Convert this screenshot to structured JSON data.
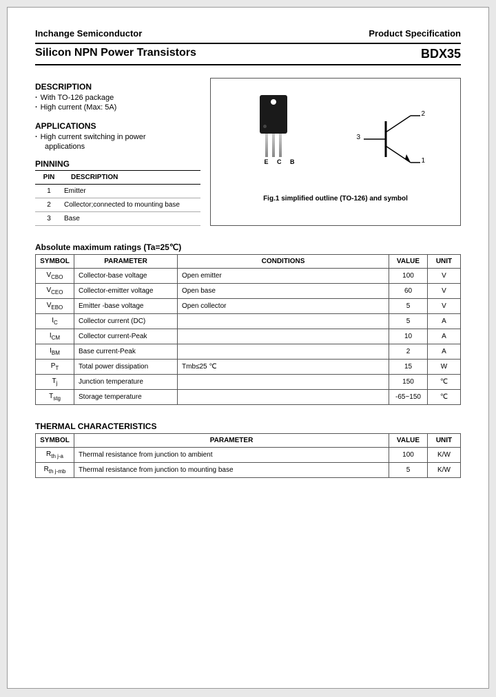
{
  "header": {
    "company": "Inchange Semiconductor",
    "spec": "Product Specification"
  },
  "title": {
    "left": "Silicon NPN Power Transistors",
    "right": "BDX35"
  },
  "description": {
    "heading": "DESCRIPTION",
    "lines": [
      "With TO-126 package",
      "High current (Max: 5A)"
    ]
  },
  "applications": {
    "heading": "APPLICATIONS",
    "line1": "High current switching in power",
    "line2": "applications"
  },
  "pinning": {
    "heading": "PINNING",
    "col_pin": "PIN",
    "col_desc": "DESCRIPTION",
    "rows": [
      {
        "n": "1",
        "d": "Emitter"
      },
      {
        "n": "2",
        "d": "Collector;connected to mounting base"
      },
      {
        "n": "3",
        "d": "Base"
      }
    ]
  },
  "figure": {
    "ecb": "E C B",
    "pins": {
      "1": "1",
      "2": "2",
      "3": "3"
    },
    "caption": "Fig.1 simplified outline (TO-126) and symbol"
  },
  "ratings": {
    "heading": "Absolute maximum ratings (Ta=25℃)",
    "cols": {
      "symbol": "SYMBOL",
      "param": "PARAMETER",
      "cond": "CONDITIONS",
      "value": "VALUE",
      "unit": "UNIT"
    },
    "rows": [
      {
        "s": "V",
        "sub": "CBO",
        "p": "Collector-base voltage",
        "c": "Open emitter",
        "v": "100",
        "u": "V"
      },
      {
        "s": "V",
        "sub": "CEO",
        "p": "Collector-emitter voltage",
        "c": "Open base",
        "v": "60",
        "u": "V"
      },
      {
        "s": "V",
        "sub": "EBO",
        "p": "Emitter -base voltage",
        "c": "Open collector",
        "v": "5",
        "u": "V"
      },
      {
        "s": "I",
        "sub": "C",
        "p": "Collector current (DC)",
        "c": "",
        "v": "5",
        "u": "A"
      },
      {
        "s": "I",
        "sub": "CM",
        "p": "Collector current-Peak",
        "c": "",
        "v": "10",
        "u": "A"
      },
      {
        "s": "I",
        "sub": "BM",
        "p": "Base current-Peak",
        "c": "",
        "v": "2",
        "u": "A"
      },
      {
        "s": "P",
        "sub": "T",
        "p": "Total power dissipation",
        "c": "Tmb≤25  ℃",
        "v": "15",
        "u": "W"
      },
      {
        "s": "T",
        "sub": "j",
        "p": "Junction temperature",
        "c": "",
        "v": "150",
        "u": "℃"
      },
      {
        "s": "T",
        "sub": "stg",
        "p": "Storage temperature",
        "c": "",
        "v": "-65~150",
        "u": "℃"
      }
    ]
  },
  "thermal": {
    "heading": "THERMAL CHARACTERISTICS",
    "cols": {
      "symbol": "SYMBOL",
      "param": "PARAMETER",
      "value": "VALUE",
      "unit": "UNIT"
    },
    "rows": [
      {
        "s": "R",
        "sub": "th j-a",
        "p": "Thermal resistance from junction to ambient",
        "v": "100",
        "u": "K/W"
      },
      {
        "s": "R",
        "sub": "th j-mb",
        "p": "Thermal resistance from junction to mounting base",
        "v": "5",
        "u": "K/W"
      }
    ]
  },
  "colors": {
    "text": "#000000",
    "border": "#000000",
    "page_bg": "#ffffff"
  }
}
